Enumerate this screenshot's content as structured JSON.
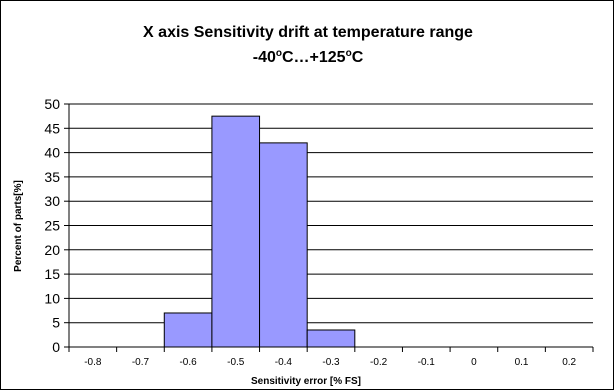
{
  "chart_data": {
    "type": "bar",
    "title_line1": "X axis Sensitivity drift at temperature range",
    "title_line2_prefix": "-40",
    "title_line2_mid": "C…+125",
    "title_line2_end": "C",
    "title_degree_mark": "o",
    "xlabel": "Sensitivity error [% FS]",
    "ylabel": "Percent of parts[%]",
    "x_tick_labels": [
      "-0.8",
      "-0.7",
      "-0.6",
      "-0.5",
      "-0.4",
      "-0.3",
      "-0.2",
      "-0.1",
      "0",
      "0.1",
      "0.2"
    ],
    "y_tick_labels": [
      "0",
      "5",
      "10",
      "15",
      "20",
      "25",
      "30",
      "35",
      "40",
      "45",
      "50"
    ],
    "bins": [
      {
        "from": -0.65,
        "to": -0.55,
        "value": 7
      },
      {
        "from": -0.55,
        "to": -0.45,
        "value": 47.5
      },
      {
        "from": -0.45,
        "to": -0.35,
        "value": 42
      },
      {
        "from": -0.35,
        "to": -0.25,
        "value": 3.5
      }
    ],
    "xlim": [
      -0.85,
      0.25
    ],
    "ylim": [
      0,
      50
    ],
    "y_grid_step": 5,
    "grid": true,
    "bar_color": "#9999ff"
  }
}
